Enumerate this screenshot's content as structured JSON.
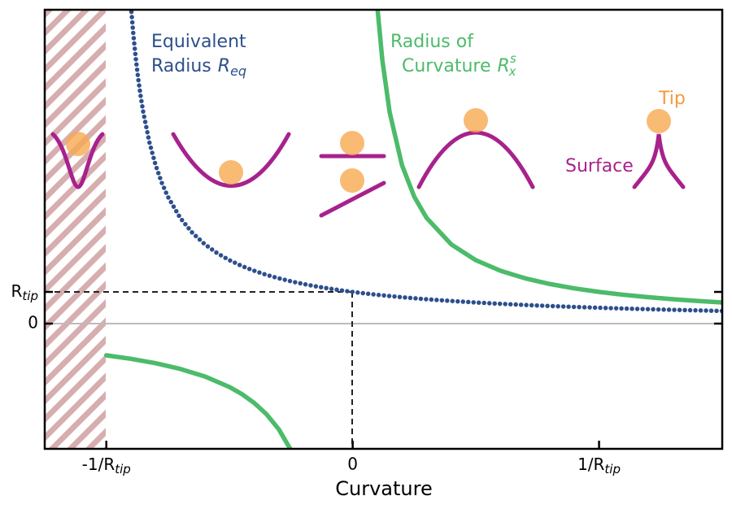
{
  "chart_data": {
    "type": "line",
    "x_label": "Curvature",
    "xlim": [
      -1.25,
      1.5
    ],
    "ylim": [
      -3.95,
      9.9
    ],
    "xticks": [
      {
        "value": -1,
        "label": "-1/R",
        "subscript": "tip"
      },
      0,
      {
        "value": 1,
        "label": "1/R",
        "subscript": "tip"
      }
    ],
    "yticks": [
      0,
      {
        "value": 1,
        "label": "R",
        "subscript": "tip"
      }
    ],
    "series": [
      {
        "color": "#2d4f8b",
        "marker": "dots",
        "x": [
          -0.9,
          -0.89,
          -0.88,
          -0.87,
          -0.86,
          -0.85,
          -0.825,
          -0.8,
          -0.775,
          -0.75,
          -0.7,
          -0.65,
          -0.6,
          -0.55,
          -0.5,
          -0.45,
          -0.4,
          -0.35,
          -0.3,
          -0.25,
          -0.2,
          -0.15,
          -0.1,
          -0.05,
          0,
          0.05,
          0.1,
          0.15,
          0.2,
          0.25,
          0.3,
          0.35,
          0.4,
          0.45,
          0.5,
          0.55,
          0.6,
          0.65,
          0.7,
          0.75,
          0.8,
          0.85,
          0.9,
          0.95,
          1.0,
          1.05,
          1.1,
          1.15,
          1.2,
          1.25,
          1.3,
          1.35,
          1.4,
          1.45,
          1.5
        ],
        "values": [
          10.0,
          9.091,
          8.333,
          7.692,
          7.143,
          6.667,
          5.714,
          5.0,
          4.444,
          4.0,
          3.333,
          2.857,
          2.5,
          2.222,
          2.0,
          1.818,
          1.667,
          1.538,
          1.429,
          1.333,
          1.25,
          1.176,
          1.111,
          1.053,
          1,
          0.952,
          0.909,
          0.87,
          0.833,
          0.8,
          0.769,
          0.741,
          0.714,
          0.69,
          0.667,
          0.645,
          0.625,
          0.606,
          0.588,
          0.571,
          0.556,
          0.541,
          0.526,
          0.513,
          0.5,
          0.488,
          0.476,
          0.465,
          0.455,
          0.444,
          0.435,
          0.426,
          0.417,
          0.408,
          0.4
        ]
      },
      {
        "color": "#4cbb6a",
        "marker": "line",
        "x": [
          -1,
          -0.9,
          -0.8,
          -0.7,
          -0.6,
          -0.5,
          -0.45,
          -0.4,
          -0.35,
          -0.3,
          -0.25,
          0,
          0.1,
          0.12,
          0.15,
          0.2,
          0.25,
          0.3,
          0.4,
          0.5,
          0.6,
          0.7,
          0.8,
          0.9,
          1.0,
          1.1,
          1.2,
          1.3,
          1.4,
          1.5
        ],
        "values": [
          -1,
          -1.111,
          -1.25,
          -1.429,
          -1.667,
          -2,
          -2.222,
          -2.5,
          -2.857,
          -3.333,
          -4,
          null,
          10,
          8.333,
          6.667,
          5,
          4,
          3.333,
          2.5,
          2,
          1.667,
          1.429,
          1.25,
          1.111,
          1,
          0.909,
          0.833,
          0.769,
          0.714,
          0.667
        ]
      }
    ],
    "annotations": {
      "req_line1": "Equivalent",
      "req_line2": "Radius",
      "req_symbol": "R",
      "req_sub": "eq",
      "rs_line1": "Radius of",
      "rs_line2": "Curvature",
      "rs_symbol": "R",
      "rs_sub": "x",
      "rs_sup": "s",
      "tip": "Tip",
      "surface": "Surface"
    }
  }
}
